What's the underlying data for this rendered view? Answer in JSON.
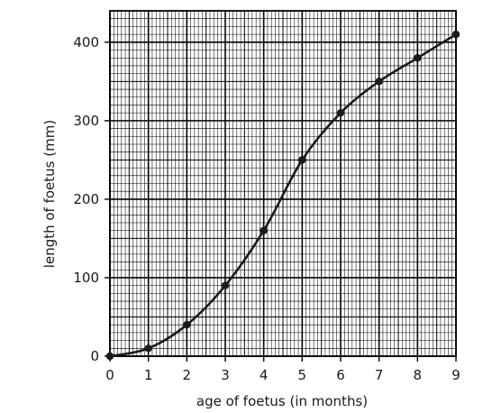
{
  "chart_data": {
    "type": "line",
    "xlabel": "age of foetus (in months)",
    "ylabel": "length of foetus (mm)",
    "xlim": [
      0,
      9
    ],
    "ylim": [
      0,
      440
    ],
    "x_ticks": [
      0,
      1,
      2,
      3,
      4,
      5,
      6,
      7,
      8,
      9
    ],
    "y_ticks": [
      0,
      100,
      200,
      300,
      400
    ],
    "grid": "fine graph-paper grid (major lines every 10 small squares)",
    "series": [
      {
        "x": [
          0,
          1,
          2,
          3,
          4,
          5,
          6,
          7,
          8,
          9
        ],
        "values": [
          0,
          10,
          40,
          90,
          160,
          250,
          310,
          350,
          380,
          410
        ]
      }
    ],
    "markers": "filled-circle",
    "line_style": "smooth-curve",
    "colors": {
      "line": "#1a1a1a",
      "grid": "#000000",
      "background": "#ffffff"
    }
  }
}
